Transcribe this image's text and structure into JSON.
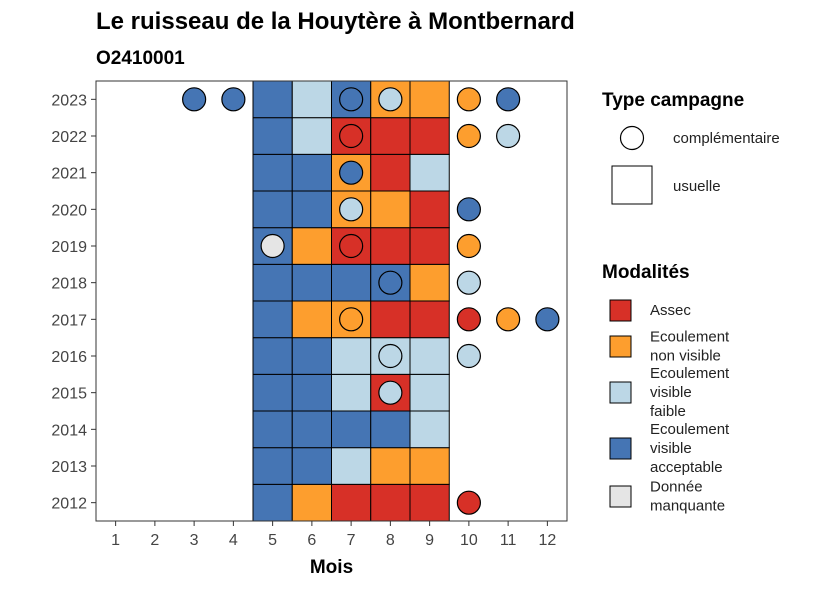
{
  "title": "Le ruisseau de la Houytère à Montbernard",
  "subtitle": "O2410001",
  "chart_data": {
    "type": "heatmap",
    "title": "Le ruisseau de la Houytère à Montbernard",
    "subtitle": "O2410001",
    "xlabel": "Mois",
    "ylabel": "",
    "x_ticks": [
      "1",
      "2",
      "3",
      "4",
      "5",
      "6",
      "7",
      "8",
      "9",
      "10",
      "11",
      "12"
    ],
    "y_ticks": [
      "2012",
      "2013",
      "2014",
      "2015",
      "2016",
      "2017",
      "2018",
      "2019",
      "2020",
      "2021",
      "2022",
      "2023"
    ],
    "xlim": [
      0.5,
      12.5
    ],
    "ylim": [
      2011.5,
      2023.5
    ],
    "colors": {
      "Assec": "#d73027",
      "Ecoulement non visible": "#fd9e2e",
      "Ecoulement visible faible": "#bcd7e6",
      "Ecoulement visible acceptable": "#4575b4",
      "Donnée manquante": "#e5e5e5"
    },
    "usuelle": [
      {
        "year": 2012,
        "months": [
          5,
          6,
          7,
          8,
          9
        ],
        "values": [
          "Ecoulement visible acceptable",
          "Ecoulement non visible",
          "Assec",
          "Assec",
          "Assec"
        ]
      },
      {
        "year": 2013,
        "months": [
          5,
          6,
          7,
          8,
          9
        ],
        "values": [
          "Ecoulement visible acceptable",
          "Ecoulement visible acceptable",
          "Ecoulement visible faible",
          "Ecoulement non visible",
          "Ecoulement non visible"
        ]
      },
      {
        "year": 2014,
        "months": [
          5,
          6,
          7,
          8,
          9
        ],
        "values": [
          "Ecoulement visible acceptable",
          "Ecoulement visible acceptable",
          "Ecoulement visible acceptable",
          "Ecoulement visible acceptable",
          "Ecoulement visible faible"
        ]
      },
      {
        "year": 2015,
        "months": [
          5,
          6,
          7,
          8,
          9
        ],
        "values": [
          "Ecoulement visible acceptable",
          "Ecoulement visible acceptable",
          "Ecoulement visible faible",
          "Assec",
          "Ecoulement visible faible"
        ]
      },
      {
        "year": 2016,
        "months": [
          5,
          6,
          7,
          8,
          9
        ],
        "values": [
          "Ecoulement visible acceptable",
          "Ecoulement visible acceptable",
          "Ecoulement visible faible",
          "Ecoulement visible faible",
          "Ecoulement visible faible"
        ]
      },
      {
        "year": 2017,
        "months": [
          5,
          6,
          7,
          8,
          9
        ],
        "values": [
          "Ecoulement visible acceptable",
          "Ecoulement non visible",
          "Ecoulement non visible",
          "Assec",
          "Assec"
        ]
      },
      {
        "year": 2018,
        "months": [
          5,
          6,
          7,
          8,
          9
        ],
        "values": [
          "Ecoulement visible acceptable",
          "Ecoulement visible acceptable",
          "Ecoulement visible acceptable",
          "Ecoulement visible acceptable",
          "Ecoulement non visible"
        ]
      },
      {
        "year": 2019,
        "months": [
          5,
          6,
          7,
          8,
          9
        ],
        "values": [
          "Ecoulement visible acceptable",
          "Ecoulement non visible",
          "Assec",
          "Assec",
          "Assec"
        ]
      },
      {
        "year": 2020,
        "months": [
          5,
          6,
          7,
          8,
          9
        ],
        "values": [
          "Ecoulement visible acceptable",
          "Ecoulement visible acceptable",
          "Ecoulement non visible",
          "Ecoulement non visible",
          "Assec"
        ]
      },
      {
        "year": 2021,
        "months": [
          5,
          6,
          7,
          8,
          9
        ],
        "values": [
          "Ecoulement visible acceptable",
          "Ecoulement visible acceptable",
          "Ecoulement non visible",
          "Assec",
          "Ecoulement visible faible"
        ]
      },
      {
        "year": 2022,
        "months": [
          5,
          6,
          7,
          8,
          9
        ],
        "values": [
          "Ecoulement visible acceptable",
          "Ecoulement visible faible",
          "Assec",
          "Assec",
          "Assec"
        ]
      },
      {
        "year": 2023,
        "months": [
          5,
          6,
          7,
          8,
          9
        ],
        "values": [
          "Ecoulement visible acceptable",
          "Ecoulement visible faible",
          "Ecoulement visible acceptable",
          "Ecoulement non visible",
          "Ecoulement non visible"
        ]
      }
    ],
    "complementaire": [
      {
        "year": 2012,
        "month": 10,
        "value": "Assec"
      },
      {
        "year": 2015,
        "month": 8,
        "value": "Ecoulement visible faible"
      },
      {
        "year": 2016,
        "month": 8,
        "value": "Ecoulement visible faible"
      },
      {
        "year": 2016,
        "month": 10,
        "value": "Ecoulement visible faible"
      },
      {
        "year": 2017,
        "month": 7,
        "value": "Ecoulement non visible"
      },
      {
        "year": 2017,
        "month": 10,
        "value": "Assec"
      },
      {
        "year": 2017,
        "month": 11,
        "value": "Ecoulement non visible"
      },
      {
        "year": 2017,
        "month": 12,
        "value": "Ecoulement visible acceptable"
      },
      {
        "year": 2018,
        "month": 8,
        "value": "Ecoulement visible acceptable"
      },
      {
        "year": 2018,
        "month": 10,
        "value": "Ecoulement visible faible"
      },
      {
        "year": 2019,
        "month": 5,
        "value": "Donnée manquante"
      },
      {
        "year": 2019,
        "month": 7,
        "value": "Assec"
      },
      {
        "year": 2019,
        "month": 10,
        "value": "Ecoulement non visible"
      },
      {
        "year": 2020,
        "month": 7,
        "value": "Ecoulement visible faible"
      },
      {
        "year": 2020,
        "month": 10,
        "value": "Ecoulement visible acceptable"
      },
      {
        "year": 2021,
        "month": 7,
        "value": "Ecoulement visible acceptable"
      },
      {
        "year": 2022,
        "month": 7,
        "value": "Assec"
      },
      {
        "year": 2022,
        "month": 10,
        "value": "Ecoulement non visible"
      },
      {
        "year": 2022,
        "month": 11,
        "value": "Ecoulement visible faible"
      },
      {
        "year": 2023,
        "month": 3,
        "value": "Ecoulement visible acceptable"
      },
      {
        "year": 2023,
        "month": 4,
        "value": "Ecoulement visible acceptable"
      },
      {
        "year": 2023,
        "month": 7,
        "value": "Ecoulement visible acceptable"
      },
      {
        "year": 2023,
        "month": 8,
        "value": "Ecoulement visible faible"
      },
      {
        "year": 2023,
        "month": 10,
        "value": "Ecoulement non visible"
      },
      {
        "year": 2023,
        "month": 11,
        "value": "Ecoulement visible acceptable"
      }
    ],
    "legend_type": {
      "title": "Type campagne",
      "items": [
        "complémentaire",
        "usuelle"
      ]
    },
    "legend_modalites": {
      "title": "Modalités",
      "items": [
        {
          "key": "Assec",
          "lines": [
            "Assec"
          ]
        },
        {
          "key": "Ecoulement non visible",
          "lines": [
            "Ecoulement",
            "non visible"
          ]
        },
        {
          "key": "Ecoulement visible faible",
          "lines": [
            "Ecoulement",
            "visible",
            "faible"
          ]
        },
        {
          "key": "Ecoulement visible acceptable",
          "lines": [
            "Ecoulement",
            "visible",
            "acceptable"
          ]
        },
        {
          "key": "Donnée manquante",
          "lines": [
            "Donnée",
            "manquante"
          ]
        }
      ]
    },
    "legend_position": "right",
    "grid": false
  }
}
